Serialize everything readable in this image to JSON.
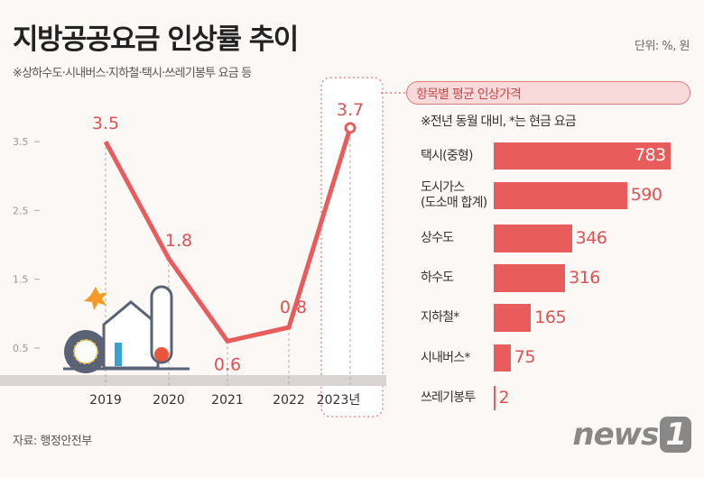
{
  "header": {
    "title": "지방공공요금 인상률 추이",
    "unit": "단위: %, 원",
    "subtitle": "※상하수도·시내버스·지하철·택시·쓰레기봉투 요금 등"
  },
  "footer": {
    "source": "자료: 행정안전부",
    "logo": "news1"
  },
  "colors": {
    "accent": "#e85c5c",
    "background": "#fcf8f6"
  },
  "chart_data": [
    {
      "type": "line",
      "categories": [
        "2019",
        "2020",
        "2021",
        "2022",
        "2023년"
      ],
      "values": [
        3.5,
        1.8,
        0.6,
        0.8,
        3.7
      ],
      "data_labels": [
        "3.5",
        "1.8",
        "0.6",
        "0.8",
        "3.7"
      ],
      "yticks": [
        "3.5",
        "2.5",
        "1.5",
        "0.5"
      ],
      "ylim": [
        0.5,
        3.5
      ],
      "highlight": "2023년"
    },
    {
      "type": "bar",
      "orientation": "horizontal",
      "title": "항목별 평균 인상가격",
      "note": "※전년 동월 대비, *는 현금 요금",
      "categories": [
        "택시(중형)",
        "도시가스\n(도소매 합계)",
        "상수도",
        "하수도",
        "지하철*",
        "시내버스*",
        "쓰레기봉투"
      ],
      "values": [
        783,
        590,
        346,
        316,
        165,
        75,
        2
      ],
      "data_labels": [
        "783",
        "590",
        "346",
        "316",
        "165",
        "75",
        "2"
      ]
    }
  ]
}
